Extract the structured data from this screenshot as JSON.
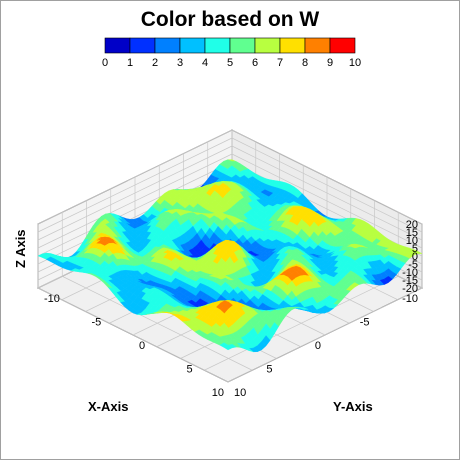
{
  "chart_data": {
    "type": "surface3d",
    "title": "Color based on W",
    "xlabel": "X-Axis",
    "ylabel": "Y-Axis",
    "zlabel": "Z Axis",
    "xlim": [
      -10,
      10
    ],
    "ylim": [
      -10,
      10
    ],
    "zlim": [
      -20,
      20
    ],
    "x_ticks": [
      "-10",
      "-5",
      "0",
      "5",
      "10"
    ],
    "y_ticks": [
      "-10",
      "-5",
      "0",
      "5",
      "10"
    ],
    "z_ticks": [
      "20",
      "15",
      "10",
      "5",
      "0",
      "-5",
      "-10",
      "-15",
      "-20"
    ],
    "colorbar": {
      "ticks": [
        "0",
        "1",
        "2",
        "3",
        "4",
        "5",
        "6",
        "7",
        "8",
        "9",
        "10"
      ],
      "range": [
        0,
        10
      ],
      "colors": [
        "#0000c8",
        "#0030ff",
        "#0080ff",
        "#00c0ff",
        "#20ffe8",
        "#60ff90",
        "#b8ff40",
        "#ffe000",
        "#ff8000",
        "#ff0000"
      ]
    },
    "grid": true,
    "legend": "top colorbar"
  }
}
